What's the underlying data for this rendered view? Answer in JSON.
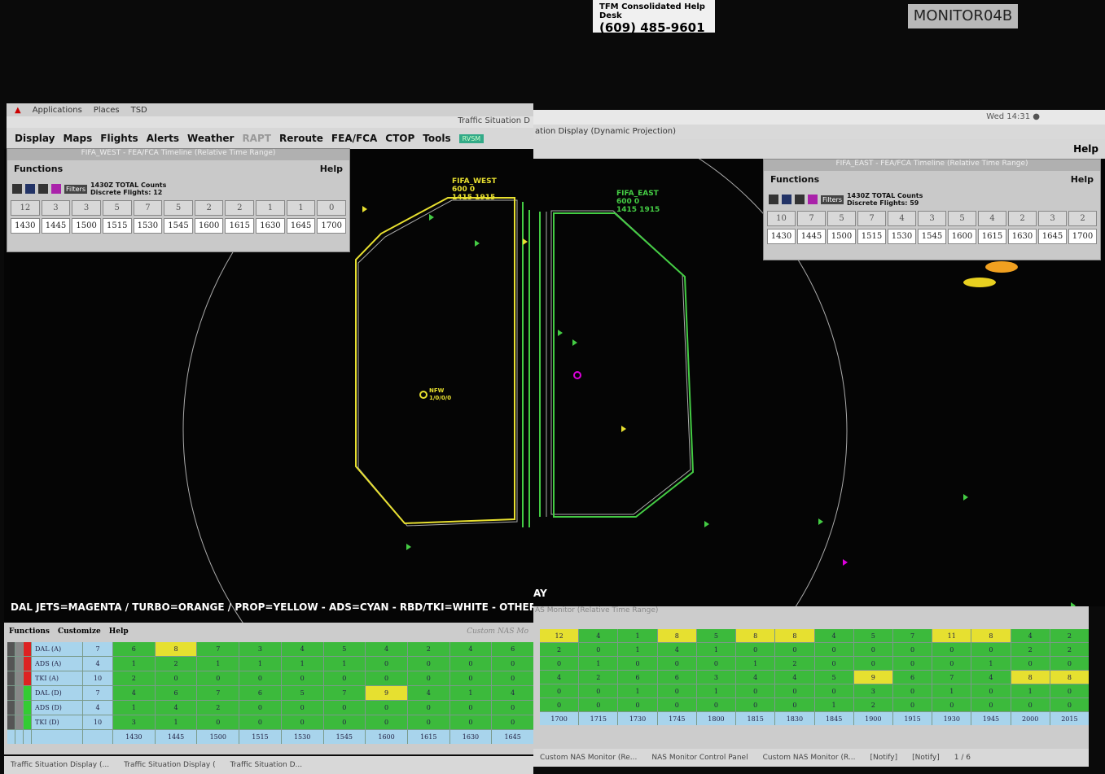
{
  "sticker": {
    "title": "TFM Consolidated Help Desk",
    "phone": "(609) 485-9601",
    "monitor": "MONITOR04B"
  },
  "left_screen": {
    "top_bar": {
      "items": [
        "Applications",
        "Places",
        "TSD"
      ],
      "window_title": "Traffic Situation D"
    },
    "menu": [
      "Display",
      "Maps",
      "Flights",
      "Alerts",
      "Weather",
      "RAPT",
      "Reroute",
      "FEA/FCA",
      "CTOP",
      "Tools",
      "RVSM"
    ],
    "timeline": {
      "title": "FIFA_WEST - FEA/FCA Timeline (Relative Time Range)",
      "functions": "Functions",
      "help": "Help",
      "filters": "Filters",
      "total": "1430Z TOTAL Counts",
      "discrete": "Discrete Flights: 12",
      "counts": [
        12,
        3,
        3,
        5,
        7,
        5,
        2,
        2,
        1,
        1,
        0
      ],
      "times": [
        "1430",
        "1445",
        "1500",
        "1515",
        "1530",
        "1545",
        "1600",
        "1615",
        "1630",
        "1645",
        "1700"
      ]
    },
    "map": {
      "fca_name": "FIFA_WEST",
      "fca_alt": "600 0",
      "fca_time": "1415 1915",
      "airport": "NFW",
      "airport_info": "1/0/0/0"
    },
    "legend": "DAL JETS=MAGENTA / TURBO=ORANGE / PROP=YELLOW - ADS=CYAN - RBD/TKI=WHITE - OTHER ESAT=GRAY",
    "nas_monitor": {
      "menu": [
        "Functions",
        "Customize",
        "Help"
      ],
      "title": "Custom NAS Mo",
      "rows": [
        {
          "label": "DAL (A)",
          "count": 7,
          "values": [
            6,
            8,
            7,
            3,
            4,
            5,
            4,
            2,
            4,
            6
          ]
        },
        {
          "label": "ADS (A)",
          "count": 4,
          "values": [
            1,
            2,
            1,
            1,
            1,
            1,
            0,
            0,
            0,
            0
          ]
        },
        {
          "label": "TKI (A)",
          "count": 10,
          "values": [
            2,
            0,
            0,
            0,
            0,
            0,
            0,
            0,
            0,
            0
          ]
        },
        {
          "label": "DAL (D)",
          "count": 7,
          "values": [
            4,
            6,
            7,
            6,
            5,
            7,
            9,
            4,
            1,
            4
          ]
        },
        {
          "label": "ADS (D)",
          "count": 4,
          "values": [
            1,
            4,
            2,
            0,
            0,
            0,
            0,
            0,
            0,
            0
          ]
        },
        {
          "label": "TKI (D)",
          "count": 10,
          "values": [
            3,
            1,
            0,
            0,
            0,
            0,
            0,
            0,
            0,
            0
          ]
        }
      ],
      "times": [
        "1430",
        "1445",
        "1500",
        "1515",
        "1530",
        "1545",
        "1600",
        "1615",
        "1630",
        "1645"
      ],
      "highlighted": [
        [
          0,
          1
        ],
        [
          3,
          6
        ]
      ]
    },
    "taskbar": [
      "Traffic Situation Display (...",
      "Traffic Situation Display (",
      "Traffic Situation D..."
    ]
  },
  "right_screen": {
    "top_bar": {
      "clock": "Wed 14:31 ●",
      "window_title": "ation Display (Dynamic Projection)",
      "help": "Help"
    },
    "timeline": {
      "title": "FIFA_EAST - FEA/FCA Timeline (Relative Time Range)",
      "functions": "Functions",
      "help": "Help",
      "filters": "Filters",
      "total": "1430Z TOTAL Counts",
      "discrete": "Discrete Flights: 59",
      "counts": [
        10,
        7,
        5,
        7,
        4,
        3,
        5,
        4,
        2,
        3,
        2
      ],
      "times": [
        "1430",
        "1445",
        "1500",
        "1515",
        "1530",
        "1545",
        "1600",
        "1615",
        "1630",
        "1645",
        "1700"
      ]
    },
    "map": {
      "fca_name": "FIFA_EAST",
      "fca_alt": "600 0",
      "fca_time": "1415 1915",
      "legend_tail": "AY"
    },
    "nas_monitor": {
      "title": "AS Monitor (Relative Time Range)",
      "rows": [
        {
          "values": [
            12,
            4,
            1,
            8,
            5,
            8,
            8,
            4,
            5,
            7,
            11,
            8,
            4,
            2
          ]
        },
        {
          "values": [
            2,
            0,
            1,
            4,
            1,
            0,
            0,
            0,
            0,
            0,
            0,
            0,
            2,
            2
          ]
        },
        {
          "values": [
            0,
            1,
            0,
            0,
            0,
            1,
            2,
            0,
            0,
            0,
            0,
            1,
            0,
            0
          ]
        },
        {
          "values": [
            4,
            2,
            6,
            6,
            3,
            4,
            4,
            5,
            9,
            6,
            7,
            4,
            8,
            8
          ]
        },
        {
          "values": [
            0,
            0,
            1,
            0,
            1,
            0,
            0,
            0,
            3,
            0,
            1,
            0,
            1,
            0
          ]
        },
        {
          "values": [
            0,
            0,
            0,
            0,
            0,
            0,
            0,
            1,
            2,
            0,
            0,
            0,
            0,
            0
          ]
        }
      ],
      "times": [
        "1700",
        "1715",
        "1730",
        "1745",
        "1800",
        "1815",
        "1830",
        "1845",
        "1900",
        "1915",
        "1930",
        "1945",
        "2000",
        "2015"
      ],
      "highlighted": [
        [
          0,
          0
        ],
        [
          0,
          3
        ],
        [
          0,
          5
        ],
        [
          0,
          6
        ],
        [
          0,
          10
        ],
        [
          0,
          11
        ],
        [
          3,
          8
        ],
        [
          3,
          12
        ],
        [
          3,
          13
        ]
      ]
    },
    "taskbar": [
      "Custom NAS Monitor (Re...",
      "NAS Monitor Control Panel",
      "Custom NAS Monitor (R...",
      "[Notify]",
      "[Notify]",
      "1 / 6"
    ]
  }
}
